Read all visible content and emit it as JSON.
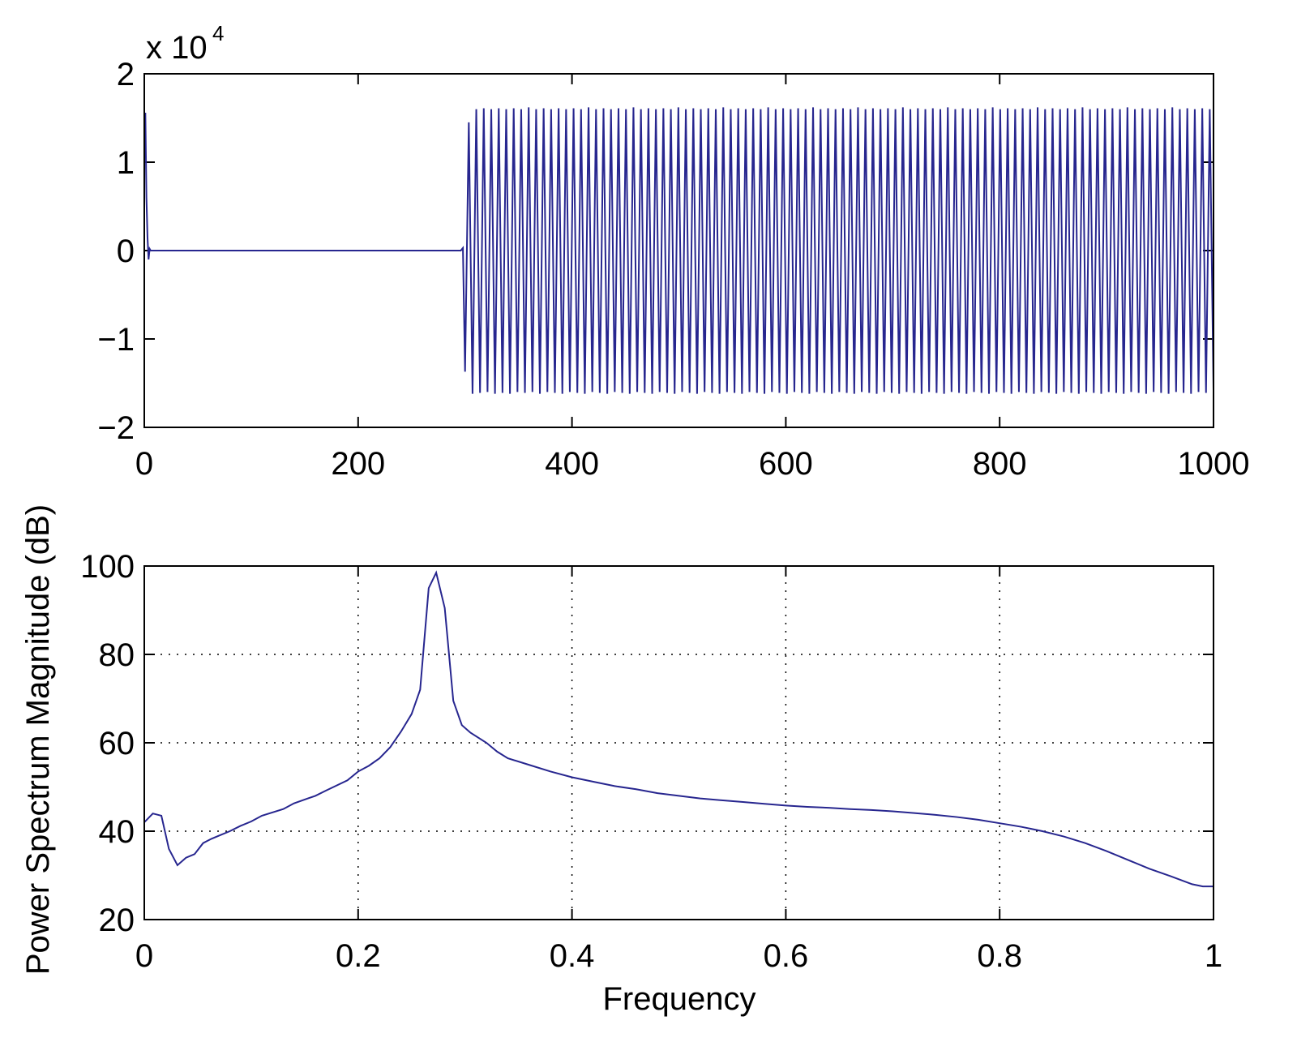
{
  "chart_data": [
    {
      "type": "line",
      "color": "#27268f",
      "y_multiplier": "x 10",
      "y_multiplier_exponent": "4",
      "xlim": [
        0,
        1000
      ],
      "xticks": [
        0,
        200,
        400,
        600,
        800,
        1000
      ],
      "ylim": [
        -2,
        2
      ],
      "yticks": [
        {
          "value": -2,
          "label": "−2"
        },
        {
          "value": -1,
          "label": "−1"
        },
        0,
        1,
        2
      ],
      "grid": false,
      "x": [
        0,
        1,
        2,
        3,
        4,
        5,
        6,
        296,
        298,
        300,
        303.5,
        307,
        310.5,
        314,
        317.5,
        321,
        324.5,
        328,
        331.5,
        335,
        338.5,
        342,
        345.5,
        349,
        352.5,
        356,
        359.5,
        363,
        366.5,
        370,
        373.5,
        377,
        380.5,
        384,
        387.5,
        391,
        394.5,
        398,
        401.5,
        405,
        408.5,
        412,
        415.5,
        419,
        422.5,
        426,
        429.5,
        433,
        436.5,
        440,
        443.5,
        447,
        450.5,
        454,
        457.5,
        461,
        464.5,
        468,
        471.5,
        475,
        478.5,
        482,
        485.5,
        489,
        492.5,
        496,
        499.5,
        503,
        506.5,
        510,
        513.5,
        517,
        520.5,
        524,
        527.5,
        531,
        534.5,
        538,
        541.5,
        545,
        548.5,
        552,
        555.5,
        559,
        562.5,
        566,
        569.5,
        573,
        576.5,
        580,
        583.5,
        587,
        590.5,
        594,
        597.5,
        601,
        604.5,
        608,
        611.5,
        615,
        618.5,
        622,
        625.5,
        629,
        632.5,
        636,
        639.5,
        643,
        646.5,
        650,
        653.5,
        657,
        660.5,
        664,
        667.5,
        671,
        674.5,
        678,
        681.5,
        685,
        688.5,
        692,
        695.5,
        699,
        702.5,
        706,
        709.5,
        713,
        716.5,
        720,
        723.5,
        727,
        730.5,
        734,
        737.5,
        741,
        744.5,
        748,
        751.5,
        755,
        758.5,
        762,
        765.5,
        769,
        772.5,
        776,
        779.5,
        783,
        786.5,
        790,
        793.5,
        797,
        800.5,
        804,
        807.5,
        811,
        814.5,
        818,
        821.5,
        825,
        828.5,
        832,
        835.5,
        839,
        842.5,
        846,
        849.5,
        853,
        856.5,
        860,
        863.5,
        867,
        870.5,
        874,
        877.5,
        881,
        884.5,
        888,
        891.5,
        895,
        898.5,
        902,
        905.5,
        909,
        912.5,
        916,
        919.5,
        923,
        926.5,
        930,
        933.5,
        937,
        940.5,
        944,
        947.5,
        951,
        954.5,
        958,
        961.5,
        965,
        968.5,
        972,
        975.5,
        979,
        982.5,
        986,
        989.5,
        993,
        996.5,
        1000
      ],
      "values": [
        1.55,
        1.55,
        0.6,
        0.15,
        -0.1,
        0.02,
        0,
        0,
        0.03,
        -1.37,
        1.45,
        -1.62,
        1.6,
        -1.61,
        1.61,
        -1.6,
        1.6,
        -1.62,
        1.61,
        -1.61,
        1.6,
        -1.62,
        1.61,
        -1.6,
        1.6,
        -1.61,
        1.62,
        -1.6,
        1.6,
        -1.62,
        1.61,
        -1.6,
        1.6,
        -1.61,
        1.61,
        -1.62,
        1.6,
        -1.6,
        1.61,
        -1.61,
        1.6,
        -1.62,
        1.62,
        -1.6,
        1.6,
        -1.61,
        1.61,
        -1.62,
        1.6,
        -1.6,
        1.61,
        -1.61,
        1.6,
        -1.62,
        1.62,
        -1.6,
        1.6,
        -1.61,
        1.61,
        -1.62,
        1.6,
        -1.6,
        1.61,
        -1.61,
        1.6,
        -1.62,
        1.62,
        -1.6,
        1.6,
        -1.61,
        1.61,
        -1.62,
        1.6,
        -1.6,
        1.61,
        -1.61,
        1.6,
        -1.62,
        1.62,
        -1.6,
        1.6,
        -1.61,
        1.61,
        -1.62,
        1.6,
        -1.6,
        1.61,
        -1.61,
        1.6,
        -1.62,
        1.62,
        -1.6,
        1.6,
        -1.61,
        1.61,
        -1.62,
        1.6,
        -1.6,
        1.61,
        -1.61,
        1.6,
        -1.62,
        1.62,
        -1.6,
        1.6,
        -1.61,
        1.61,
        -1.62,
        1.6,
        -1.6,
        1.61,
        -1.61,
        1.6,
        -1.62,
        1.62,
        -1.6,
        1.6,
        -1.61,
        1.61,
        -1.62,
        1.6,
        -1.6,
        1.61,
        -1.61,
        1.6,
        -1.62,
        1.62,
        -1.6,
        1.6,
        -1.61,
        1.61,
        -1.62,
        1.6,
        -1.6,
        1.61,
        -1.61,
        1.6,
        -1.62,
        1.62,
        -1.6,
        1.6,
        -1.61,
        1.61,
        -1.62,
        1.6,
        -1.6,
        1.61,
        -1.61,
        1.6,
        -1.62,
        1.62,
        -1.6,
        1.6,
        -1.61,
        1.61,
        -1.62,
        1.6,
        -1.6,
        1.61,
        -1.61,
        1.6,
        -1.62,
        1.62,
        -1.6,
        1.6,
        -1.61,
        1.61,
        -1.62,
        1.6,
        -1.6,
        1.61,
        -1.61,
        1.6,
        -1.62,
        1.62,
        -1.6,
        1.6,
        -1.61,
        1.61,
        -1.62,
        1.6,
        -1.6,
        1.61,
        -1.61,
        1.6,
        -1.62,
        1.62,
        -1.6,
        1.6,
        -1.61,
        1.61,
        -1.62,
        1.6,
        -1.6,
        1.61,
        -1.61,
        1.6,
        -1.62,
        1.62,
        -1.6,
        1.6,
        -1.61,
        1.61,
        -1.62,
        1.6,
        -1.6,
        1.61,
        -1.61,
        1.6,
        -1.58
      ]
    },
    {
      "type": "line",
      "color": "#27268f",
      "x_label": "Frequency",
      "y_label": "Power Spectrum Magnitude (dB)",
      "xlim": [
        0,
        1
      ],
      "xticks": [
        0,
        0.2,
        0.4,
        0.6,
        0.8,
        1
      ],
      "ylim": [
        20,
        100
      ],
      "yticks": [
        20,
        40,
        60,
        80,
        100
      ],
      "grid": true,
      "x": [
        0,
        0.008,
        0.016,
        0.023,
        0.031,
        0.039,
        0.047,
        0.055,
        0.063,
        0.07,
        0.08,
        0.09,
        0.1,
        0.11,
        0.13,
        0.14,
        0.16,
        0.17,
        0.19,
        0.2,
        0.21,
        0.22,
        0.23,
        0.24,
        0.25,
        0.258,
        0.266,
        0.273,
        0.281,
        0.289,
        0.297,
        0.305,
        0.32,
        0.33,
        0.34,
        0.36,
        0.38,
        0.4,
        0.42,
        0.44,
        0.46,
        0.48,
        0.5,
        0.52,
        0.54,
        0.56,
        0.58,
        0.6,
        0.62,
        0.64,
        0.66,
        0.68,
        0.7,
        0.72,
        0.74,
        0.76,
        0.78,
        0.8,
        0.82,
        0.84,
        0.86,
        0.88,
        0.9,
        0.92,
        0.94,
        0.96,
        0.98,
        0.99,
        1
      ],
      "values": [
        42,
        44,
        43.5,
        36,
        32.3,
        34,
        34.8,
        37.3,
        38.3,
        39,
        40,
        41.2,
        42.2,
        43.5,
        45,
        46.3,
        48,
        49.2,
        51.5,
        53.5,
        54.8,
        56.5,
        59,
        62.5,
        66.5,
        72,
        95,
        98.5,
        90.5,
        69.5,
        64,
        62.3,
        60,
        58,
        56.5,
        55,
        53.5,
        52.2,
        51.2,
        50.2,
        49.5,
        48.6,
        48,
        47.4,
        47,
        46.6,
        46.2,
        45.8,
        45.5,
        45.3,
        45,
        44.8,
        44.5,
        44.1,
        43.7,
        43.2,
        42.6,
        41.8,
        41,
        40,
        38.8,
        37.3,
        35.5,
        33.5,
        31.5,
        29.8,
        28,
        27.5,
        27.5
      ]
    }
  ]
}
